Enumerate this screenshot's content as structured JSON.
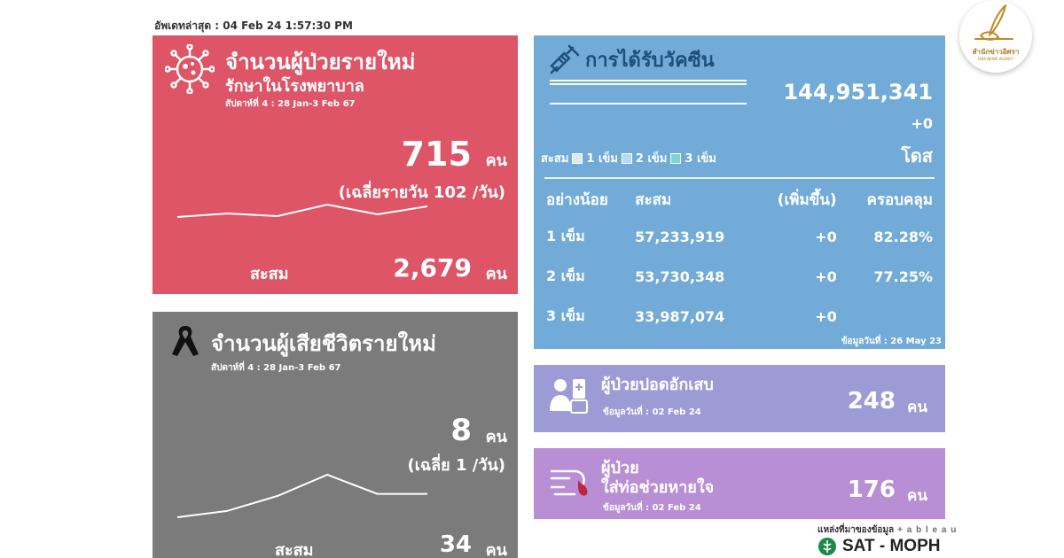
{
  "updated": "อัพเดทล่าสุด : 04 Feb 24 1:57:30 PM",
  "new_cases": {
    "title": "จำนวนผู้ป่วยรายใหม่",
    "subtitle": "รักษาในโรงพยาบาล",
    "week": "สัปดาห์ที่ 4 : 28 Jan-3 Feb 67",
    "value": "715",
    "unit": "คน",
    "avg": "(เฉลี่ยรายวัน 102 /วัน)",
    "cum_label": "สะสม",
    "cum_value": "2,679",
    "cum_unit": "คน",
    "icon": "virus-icon",
    "trend": [
      0.15,
      0.35,
      0.2,
      0.85,
      0.3,
      0.75
    ]
  },
  "deaths": {
    "title": "จำนวนผู้เสียชีวิตรายใหม่",
    "week": "สัปดาห์ที่ 4 : 28 Jan-3 Feb 67",
    "value": "8",
    "unit": "คน",
    "avg": "(เฉลี่ย 1 /วัน)",
    "cum_label": "สะสม",
    "cum_value": "34",
    "cum_unit": "คน",
    "icon": "ribbon-icon",
    "trend": [
      0.0,
      0.15,
      0.5,
      1.0,
      0.55,
      0.55
    ]
  },
  "vaccine": {
    "title": "การได้รับวัคซีน",
    "total": "144,951,341",
    "increase": "+0",
    "unit": "โดส",
    "legend": {
      "label": "สะสม",
      "d1": "1 เข็ม",
      "d2": "2 เข็ม",
      "d3": "3 เข็ม"
    },
    "columns": [
      "อย่างน้อย",
      "สะสม",
      "(เพิ่มขึ้น)",
      "ครอบคลุม"
    ],
    "rows": [
      {
        "dose": "1 เข็ม",
        "total": "57,233,919",
        "inc": "+0",
        "cov": "82.28%"
      },
      {
        "dose": "2 เข็ม",
        "total": "53,730,348",
        "inc": "+0",
        "cov": "77.25%"
      },
      {
        "dose": "3 เข็ม",
        "total": "33,987,074",
        "inc": "+0",
        "cov": ""
      }
    ],
    "data_date": "ข้อมูลวันที่ : 26 May 23",
    "icon": "syringe-icon"
  },
  "pneumonia": {
    "title": "ผู้ป่วยปอดอักเสบ",
    "date": "ข้อมูลวันที่ : 02 Feb 24",
    "value": "248",
    "unit": "คน",
    "icon": "patient-icon"
  },
  "ventilator": {
    "title1": "ผู้ป่วย",
    "title2": "ใส่ท่อช่วยหายใจ",
    "date": "ข้อมูลวันที่ : 02 Feb 24",
    "value": "176",
    "unit": "คน",
    "icon": "ventilator-icon"
  },
  "source": {
    "label": "แหล่งที่มาของข้อมูล",
    "tableau": "+ a b l e a u",
    "sat": "SAT - MOPH"
  },
  "logo": {
    "text": "สำนักข่าวอิศรา",
    "sub": "ISRA NEWS AGENCY"
  },
  "colors": {
    "red_panel": "#dd5566",
    "grey_panel": "#7b7b7b",
    "blue_panel": "#72abd8",
    "purple_panel": "#9d9bd6",
    "violet_panel": "#b88ed4"
  }
}
